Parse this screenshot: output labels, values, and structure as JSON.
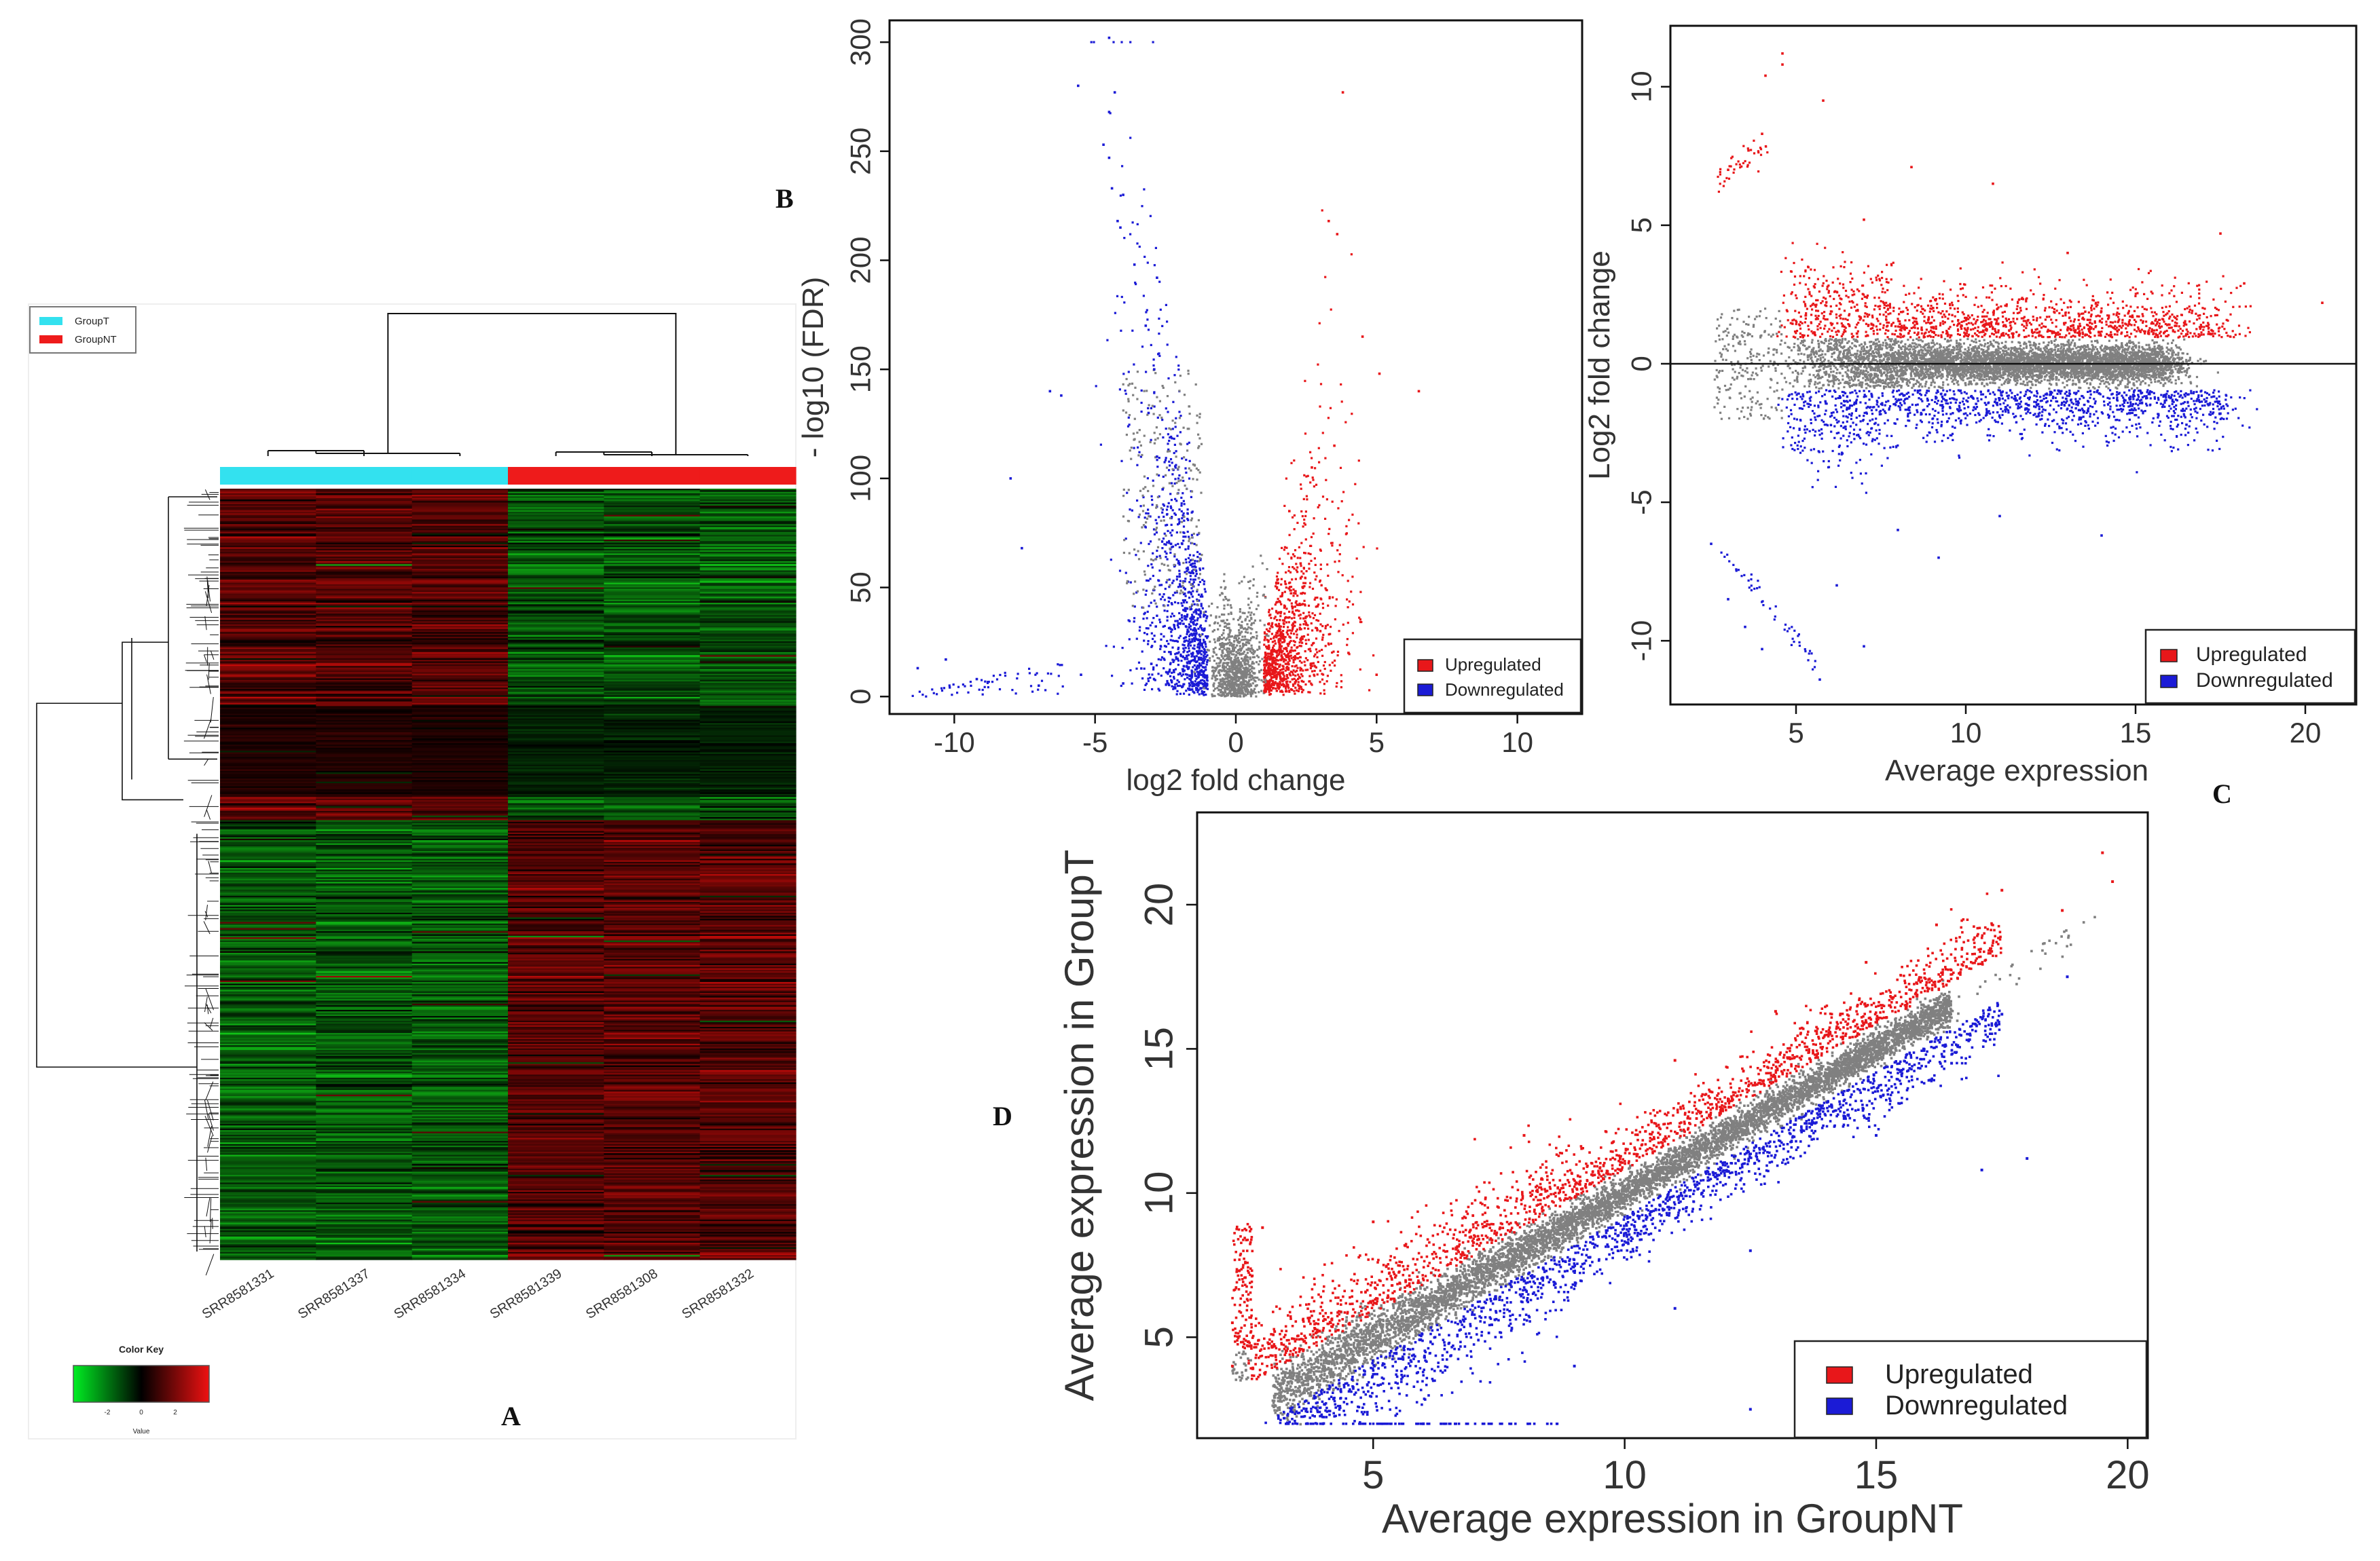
{
  "panel_labels": {
    "A": "A",
    "B": "B",
    "C": "C",
    "D": "D"
  },
  "legend_labels": {
    "up": "Upregulated",
    "down": "Downregulated"
  },
  "colors": {
    "up": "#e8171a",
    "down": "#1b1bd6",
    "neutral": "#808080",
    "groupT": "#33e1ef",
    "groupNT": "#ee1b1b",
    "heat_low": "#00d000",
    "heat_mid": "#000000",
    "heat_high": "#d00000"
  },
  "chart_data": [
    {
      "id": "A",
      "type": "heatmap",
      "legend": [
        {
          "name": "GroupT"
        },
        {
          "name": "GroupNT"
        }
      ],
      "samples": [
        "SRR8581331",
        "SRR8581337",
        "SRR8581334",
        "SRR8581339",
        "SRR8581308",
        "SRR8581332"
      ],
      "groups": [
        "GroupT",
        "GroupT",
        "GroupT",
        "GroupNT",
        "GroupNT",
        "GroupNT"
      ],
      "color_key": {
        "title": "Color Key",
        "xlabel": "Value",
        "ticks": [
          "-2",
          "0",
          "2"
        ],
        "range": [
          -3,
          3
        ]
      },
      "gene_cluster_sizes": [
        215,
        285
      ]
    },
    {
      "id": "B",
      "type": "scatter",
      "title": "",
      "xlabel": "log2 fold change",
      "ylabel": "- log10 (FDR)",
      "xlim": [
        -12.3,
        12.3
      ],
      "ylim": [
        -8,
        310
      ],
      "xticks": [
        -10,
        -5,
        0,
        5,
        10
      ],
      "yticks": [
        0,
        50,
        100,
        150,
        200,
        250,
        300
      ],
      "legend": [
        "Upregulated",
        "Downregulated"
      ],
      "legend_position": "bottom-right",
      "series": [
        {
          "name": "Upregulated",
          "points": [
            [
              3.8,
              277
            ],
            [
              3.3,
              218
            ],
            [
              3.6,
              212
            ],
            [
              4.5,
              165
            ],
            [
              5.1,
              148
            ],
            [
              6.5,
              140
            ],
            [
              3.5,
              115
            ],
            [
              2.7,
              105
            ],
            [
              1.9,
              85
            ],
            [
              2.3,
              61
            ],
            [
              1.5,
              52
            ],
            [
              2.2,
              42
            ],
            [
              3.0,
              30
            ],
            [
              4.0,
              20
            ],
            [
              5.0,
              10
            ],
            [
              6.2,
              5
            ],
            [
              1.6,
              8
            ],
            [
              1.2,
              3
            ],
            [
              2.7,
              14
            ],
            [
              1.8,
              22
            ]
          ]
        },
        {
          "name": "Downregulated",
          "points": [
            [
              -4.5,
              302
            ],
            [
              -5.6,
              280
            ],
            [
              -4.3,
              277
            ],
            [
              -4.5,
              268
            ],
            [
              -4.7,
              253
            ],
            [
              -4.5,
              247
            ],
            [
              -4.4,
              233
            ],
            [
              -4.0,
              230
            ],
            [
              -4.2,
              218
            ],
            [
              -4.1,
              215
            ],
            [
              -3.6,
              198
            ],
            [
              -2.8,
              192
            ],
            [
              -3.2,
              170
            ],
            [
              -2.9,
              150
            ],
            [
              -3.1,
              130
            ],
            [
              -2.8,
              110
            ],
            [
              -2.6,
              95
            ],
            [
              -2.3,
              70
            ],
            [
              -2.0,
              55
            ],
            [
              -1.8,
              40
            ],
            [
              -1.6,
              25
            ],
            [
              -2.2,
              12
            ],
            [
              -7.6,
              68
            ],
            [
              -6.2,
              138
            ],
            [
              -6.6,
              140
            ],
            [
              -8.0,
              100
            ],
            [
              -10.3,
              17
            ],
            [
              -11.3,
              13
            ],
            [
              -9.2,
              8
            ],
            [
              -7.0,
              5
            ],
            [
              -5.5,
              10
            ],
            [
              -4.0,
              6
            ],
            [
              -3.0,
              15
            ],
            [
              -1.5,
              5
            ]
          ]
        }
      ]
    },
    {
      "id": "C",
      "type": "scatter",
      "title": "",
      "xlabel": "Average expression",
      "ylabel": "Log2 fold change",
      "xlim": [
        1.3,
        21.5
      ],
      "ylim": [
        -12.3,
        12.2
      ],
      "xticks": [
        5,
        10,
        15,
        20
      ],
      "yticks": [
        -10,
        -5,
        0,
        5,
        10
      ],
      "hline": 0,
      "legend": [
        "Upregulated",
        "Downregulated"
      ],
      "legend_position": "bottom-right",
      "series": [
        {
          "name": "Upregulated",
          "points": [
            [
              4.6,
              11.2
            ],
            [
              4.6,
              10.8
            ],
            [
              4.1,
              10.4
            ],
            [
              3.0,
              7.0
            ],
            [
              3.6,
              7.7
            ],
            [
              4.0,
              8.3
            ],
            [
              5.8,
              9.5
            ],
            [
              8.4,
              7.1
            ],
            [
              10.8,
              6.5
            ],
            [
              17.5,
              4.7
            ],
            [
              7.0,
              5.2
            ],
            [
              13.0,
              4.0
            ],
            [
              20.5,
              2.2
            ],
            [
              18.2,
              2.9
            ]
          ]
        },
        {
          "name": "Downregulated",
          "points": [
            [
              2.5,
              -6.5
            ],
            [
              3.0,
              -8.5
            ],
            [
              3.5,
              -9.5
            ],
            [
              4.0,
              -10.3
            ],
            [
              5.7,
              -11.4
            ],
            [
              7.0,
              -10.2
            ],
            [
              6.2,
              -8.0
            ],
            [
              9.2,
              -7.0
            ],
            [
              14.0,
              -6.2
            ],
            [
              17.5,
              -1.8
            ],
            [
              16.5,
              -2.2
            ],
            [
              11.0,
              -5.5
            ],
            [
              8.0,
              -6.0
            ]
          ]
        }
      ]
    },
    {
      "id": "D",
      "type": "scatter",
      "title": "",
      "xlabel": "Average expression in GroupNT",
      "ylabel": "Average expression in GroupT",
      "xlim": [
        1.5,
        20.4
      ],
      "ylim": [
        1.5,
        23.2
      ],
      "xticks": [
        5,
        10,
        15,
        20
      ],
      "yticks": [
        5,
        10,
        15,
        20
      ],
      "legend": [
        "Upregulated",
        "Downregulated"
      ],
      "legend_position": "bottom-right",
      "series": [
        {
          "name": "Upregulated",
          "points": [
            [
              19.5,
              21.8
            ],
            [
              19.7,
              20.8
            ],
            [
              18.7,
              19.8
            ],
            [
              17.5,
              20.5
            ],
            [
              16.2,
              19.3
            ],
            [
              14.8,
              18.0
            ],
            [
              13.0,
              16.3
            ],
            [
              11.0,
              14.6
            ],
            [
              8.0,
              12.0
            ],
            [
              5.0,
              9.0
            ],
            [
              2.8,
              8.8
            ],
            [
              2.2,
              5.5
            ],
            [
              2.2,
              4.0
            ]
          ]
        },
        {
          "name": "Downregulated",
          "points": [
            [
              18.8,
              17.5
            ],
            [
              17.5,
              16.2
            ],
            [
              16.5,
              14.5
            ],
            [
              18.0,
              11.2
            ],
            [
              17.1,
              10.8
            ],
            [
              15.0,
              12.0
            ],
            [
              12.5,
              8.0
            ],
            [
              11.0,
              6.0
            ],
            [
              9.0,
              4.0
            ],
            [
              12.5,
              2.5
            ],
            [
              6.0,
              2.0
            ],
            [
              4.0,
              2.0
            ]
          ]
        }
      ]
    }
  ]
}
